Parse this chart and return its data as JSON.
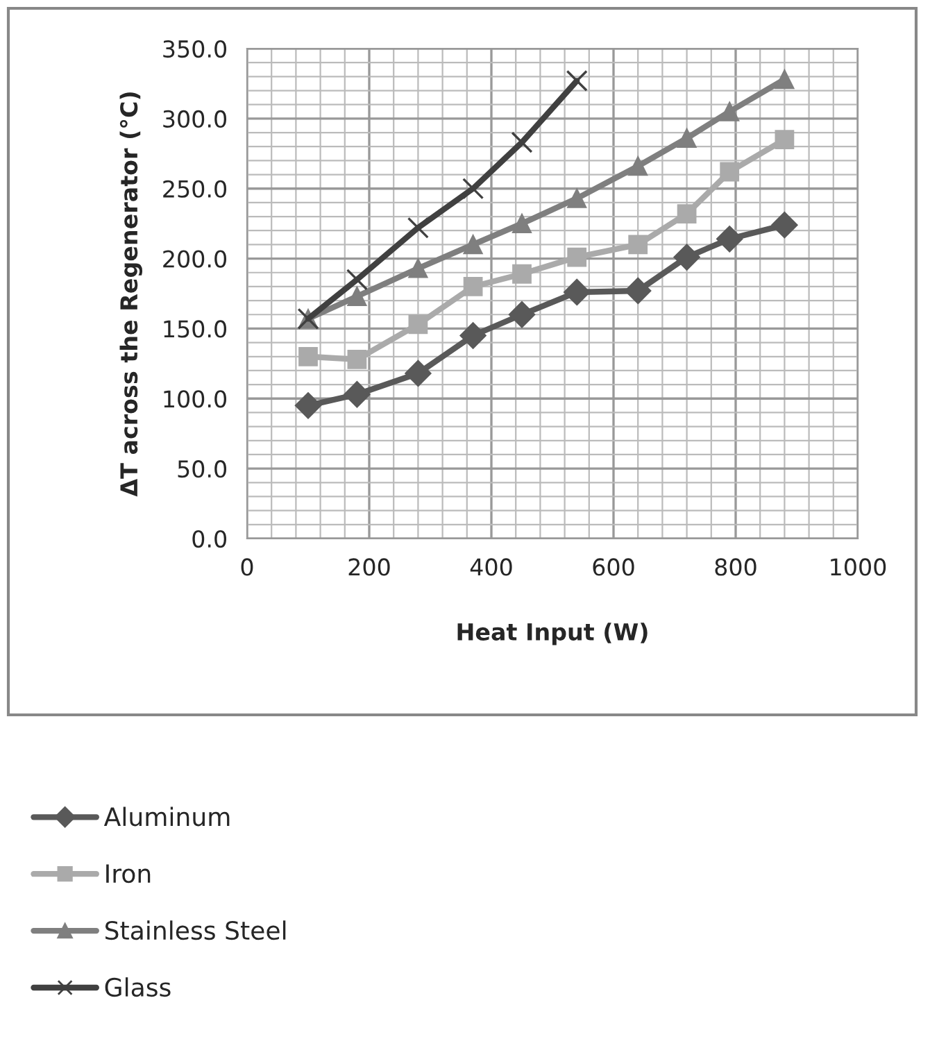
{
  "chart_data": {
    "type": "line",
    "xlabel": "Heat Input (W)",
    "ylabel": "ΔT across the Regenerator (°C)",
    "xlim": [
      0,
      1000
    ],
    "xticks": [
      0,
      200,
      400,
      600,
      800,
      1000
    ],
    "ylim": [
      0,
      350
    ],
    "yticks": [
      {
        "value": 0,
        "label": "0.0"
      },
      {
        "value": 50,
        "label": "50.0"
      },
      {
        "value": 100,
        "label": "100.0"
      },
      {
        "value": 150,
        "label": "150.0"
      },
      {
        "value": 200,
        "label": "200.0"
      },
      {
        "value": 250,
        "label": "250.0"
      },
      {
        "value": 300,
        "label": "300.0"
      },
      {
        "value": 350,
        "label": "350.0"
      }
    ],
    "grid": true,
    "legend": "bottom",
    "series": [
      {
        "name": "Aluminum",
        "color": "#595959",
        "marker": "diamond",
        "x": [
          100,
          180,
          280,
          370,
          450,
          540,
          640,
          720,
          790,
          880
        ],
        "values": [
          95,
          103,
          118,
          145,
          160,
          176,
          177,
          201,
          214,
          224
        ]
      },
      {
        "name": "Iron",
        "color": "#aaaaaa",
        "marker": "square",
        "x": [
          100,
          180,
          280,
          370,
          450,
          540,
          640,
          720,
          790,
          880
        ],
        "values": [
          130,
          128,
          153,
          180,
          189,
          201,
          210,
          232,
          262,
          285
        ]
      },
      {
        "name": "Stainless Steel",
        "color": "#7f7f7f",
        "marker": "triangle",
        "x": [
          100,
          180,
          280,
          370,
          450,
          540,
          640,
          720,
          790,
          880
        ],
        "values": [
          157,
          173,
          193,
          210,
          225,
          243,
          266,
          286,
          305,
          328
        ]
      },
      {
        "name": "Glass",
        "color": "#404040",
        "marker": "cross",
        "x": [
          100,
          180,
          280,
          370,
          450,
          540
        ],
        "values": [
          157,
          185,
          222,
          250,
          283,
          327
        ]
      }
    ]
  }
}
